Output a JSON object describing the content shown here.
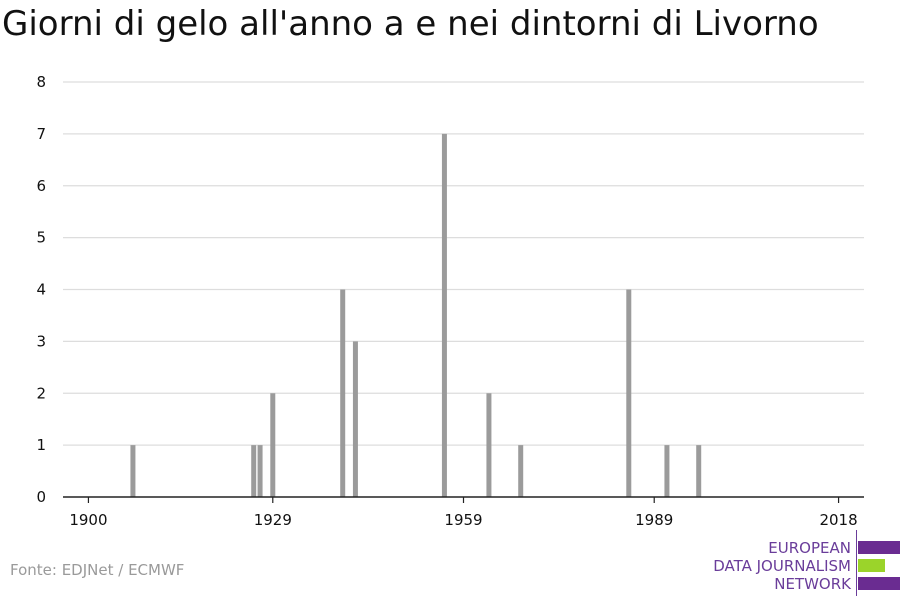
{
  "title": "Giorni di gelo all'anno a e nei dintorni di Livorno",
  "source": "Fonte: EDJNet / ECMWF",
  "logo": {
    "line1": "EUROPEAN",
    "line2": "DATA JOURNALISM",
    "line3": "NETWORK",
    "colors": [
      "#6a2c91",
      "#9bd42a",
      "#6a2c91"
    ]
  },
  "colors": {
    "bar": "#9b9b9b",
    "grid": "#dddddd",
    "axis": "#222222",
    "text": "#111111"
  },
  "chart_data": {
    "type": "bar",
    "title": "Giorni di gelo all'anno a e nei dintorni di Livorno",
    "xlabel": "",
    "ylabel": "",
    "xlim": [
      1900,
      2018
    ],
    "ylim": [
      0,
      8
    ],
    "xticks": [
      1900,
      1929,
      1959,
      1989,
      2018
    ],
    "yticks": [
      0,
      1,
      2,
      3,
      4,
      5,
      6,
      7,
      8
    ],
    "grid": true,
    "x": [
      1907,
      1926,
      1927,
      1929,
      1940,
      1942,
      1956,
      1963,
      1968,
      1985,
      1991,
      1996
    ],
    "values": [
      1,
      1,
      1,
      2,
      4,
      3,
      7,
      2,
      1,
      4,
      1,
      1
    ]
  }
}
